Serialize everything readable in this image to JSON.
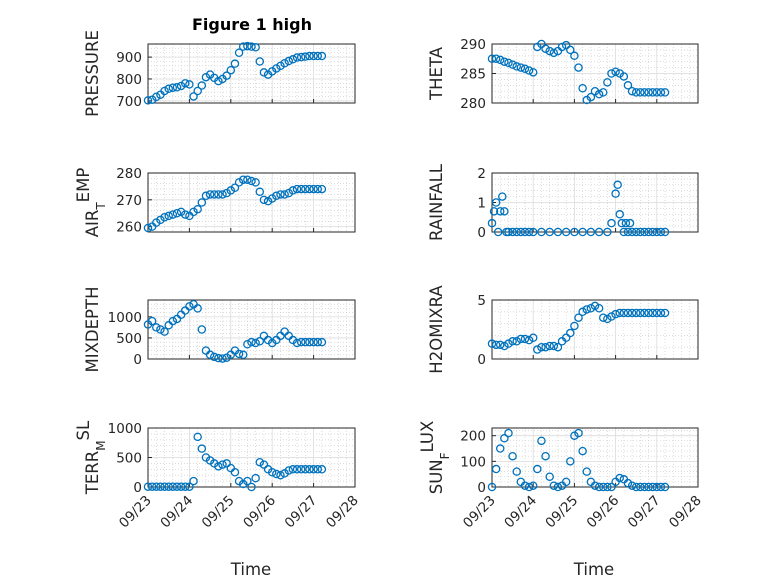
{
  "title": "Figure 1 high",
  "marker_color": "#0072BD",
  "x_tick_labels": [
    "09/23",
    "09/24",
    "09/25",
    "09/26",
    "09/27",
    "09/28"
  ],
  "xlabel": "Time",
  "chart_data": [
    {
      "type": "scatter",
      "ylabel": "PRESSURE",
      "ylim": [
        690,
        960
      ],
      "yticks": [
        700,
        800,
        900
      ],
      "grid": true,
      "x": [
        0.0,
        0.1,
        0.2,
        0.3,
        0.4,
        0.5,
        0.6,
        0.7,
        0.8,
        0.9,
        1.0,
        1.1,
        1.2,
        1.3,
        1.4,
        1.5,
        1.6,
        1.7,
        1.8,
        1.9,
        2.0,
        2.1,
        2.2,
        2.3,
        2.4,
        2.5,
        2.6,
        2.7,
        2.8,
        2.9,
        3.0,
        3.1,
        3.2,
        3.3,
        3.4,
        3.5,
        3.6,
        3.7,
        3.8,
        3.9,
        4.0,
        4.1,
        4.2
      ],
      "y": [
        702,
        705,
        718,
        728,
        745,
        755,
        760,
        762,
        768,
        780,
        775,
        720,
        745,
        770,
        808,
        820,
        805,
        790,
        800,
        815,
        840,
        870,
        920,
        948,
        950,
        948,
        945,
        880,
        830,
        820,
        835,
        848,
        860,
        872,
        882,
        890,
        898,
        900,
        902,
        905,
        905,
        905,
        905
      ]
    },
    {
      "type": "scatter",
      "ylabel": "THETA",
      "ylim": [
        280,
        290
      ],
      "yticks": [
        280,
        285,
        290
      ],
      "grid": true,
      "x": [
        0.0,
        0.1,
        0.2,
        0.3,
        0.4,
        0.5,
        0.6,
        0.7,
        0.8,
        0.9,
        1.0,
        1.1,
        1.2,
        1.3,
        1.4,
        1.5,
        1.6,
        1.7,
        1.8,
        1.9,
        2.0,
        2.1,
        2.2,
        2.3,
        2.4,
        2.5,
        2.6,
        2.7,
        2.8,
        2.9,
        3.0,
        3.1,
        3.2,
        3.3,
        3.4,
        3.5,
        3.6,
        3.7,
        3.8,
        3.9,
        4.0,
        4.1,
        4.2
      ],
      "y": [
        287.5,
        287.5,
        287.3,
        287.0,
        286.8,
        286.5,
        286.2,
        286.0,
        285.8,
        285.5,
        285.2,
        289.5,
        290.0,
        289.2,
        288.8,
        288.5,
        288.8,
        289.5,
        289.8,
        289.0,
        288.0,
        286.0,
        282.5,
        280.5,
        281.0,
        282.0,
        281.5,
        281.8,
        283.5,
        285.0,
        285.3,
        285.0,
        284.5,
        283.0,
        282.0,
        281.8,
        281.8,
        281.8,
        281.8,
        281.8,
        281.8,
        281.8,
        281.8
      ]
    },
    {
      "type": "scatter",
      "ylabel": "AIR_TEMP",
      "ylim": [
        258,
        280
      ],
      "yticks": [
        260,
        270,
        280
      ],
      "grid": true,
      "x": [
        0.0,
        0.1,
        0.2,
        0.3,
        0.4,
        0.5,
        0.6,
        0.7,
        0.8,
        0.9,
        1.0,
        1.1,
        1.2,
        1.3,
        1.4,
        1.5,
        1.6,
        1.7,
        1.8,
        1.9,
        2.0,
        2.1,
        2.2,
        2.3,
        2.4,
        2.5,
        2.6,
        2.7,
        2.8,
        2.9,
        3.0,
        3.1,
        3.2,
        3.3,
        3.4,
        3.5,
        3.6,
        3.7,
        3.8,
        3.9,
        4.0,
        4.1,
        4.2
      ],
      "y": [
        259.5,
        260.0,
        261.5,
        262.5,
        263.5,
        264.0,
        264.5,
        265.0,
        265.5,
        264.5,
        264.0,
        265.5,
        266.5,
        269.0,
        271.5,
        272.0,
        272.0,
        272.0,
        272.0,
        272.5,
        273.5,
        274.5,
        276.5,
        277.5,
        277.5,
        277.0,
        276.5,
        273.0,
        270.0,
        269.5,
        270.5,
        271.5,
        272.0,
        272.0,
        272.5,
        273.5,
        274.0,
        274.0,
        274.0,
        274.0,
        274.0,
        274.0,
        274.0
      ]
    },
    {
      "type": "scatter",
      "ylabel": "RAINFALL",
      "ylim": [
        0,
        2
      ],
      "yticks": [
        0,
        1,
        2
      ],
      "grid": true,
      "x": [
        0.0,
        0.05,
        0.1,
        0.15,
        0.2,
        0.25,
        0.3,
        0.35,
        0.4,
        0.5,
        0.6,
        0.7,
        0.8,
        0.9,
        1.0,
        1.2,
        1.4,
        1.6,
        1.8,
        2.0,
        2.2,
        2.4,
        2.6,
        2.8,
        2.9,
        3.0,
        3.05,
        3.1,
        3.15,
        3.2,
        3.25,
        3.3,
        3.35,
        3.4,
        3.5,
        3.6,
        3.7,
        3.8,
        3.9,
        4.0,
        4.1,
        4.2
      ],
      "y": [
        0.3,
        0.7,
        1.0,
        0.0,
        0.7,
        1.2,
        0.7,
        0.0,
        0.0,
        0.0,
        0.0,
        0.0,
        0.0,
        0.0,
        0.0,
        0.0,
        0.0,
        0.0,
        0.0,
        0.0,
        0.0,
        0.0,
        0.0,
        0.0,
        0.3,
        1.3,
        1.6,
        0.6,
        0.3,
        0.0,
        0.3,
        0.0,
        0.3,
        0.0,
        0.0,
        0.0,
        0.0,
        0.0,
        0.0,
        0.0,
        0.0,
        0.0
      ]
    },
    {
      "type": "scatter",
      "ylabel": "MIXDEPTH",
      "ylim": [
        0,
        1400
      ],
      "yticks": [
        0,
        500,
        1000
      ],
      "grid": true,
      "x": [
        0.0,
        0.1,
        0.2,
        0.3,
        0.4,
        0.5,
        0.6,
        0.7,
        0.8,
        0.9,
        1.0,
        1.1,
        1.2,
        1.3,
        1.4,
        1.5,
        1.6,
        1.7,
        1.8,
        1.9,
        2.0,
        2.1,
        2.2,
        2.3,
        2.4,
        2.5,
        2.6,
        2.7,
        2.8,
        2.9,
        3.0,
        3.1,
        3.2,
        3.3,
        3.4,
        3.5,
        3.6,
        3.7,
        3.8,
        3.9,
        4.0,
        4.1,
        4.2
      ],
      "y": [
        820,
        900,
        750,
        700,
        650,
        800,
        900,
        950,
        1050,
        1150,
        1250,
        1300,
        1200,
        700,
        200,
        100,
        50,
        20,
        10,
        30,
        100,
        200,
        120,
        100,
        350,
        400,
        380,
        420,
        550,
        450,
        380,
        450,
        550,
        650,
        550,
        450,
        380,
        400,
        400,
        400,
        400,
        400,
        400
      ]
    },
    {
      "type": "scatter",
      "ylabel": "H2OMIXRA",
      "ylim": [
        0,
        5
      ],
      "yticks": [
        0,
        5
      ],
      "grid": true,
      "x": [
        0.0,
        0.1,
        0.2,
        0.3,
        0.4,
        0.5,
        0.6,
        0.7,
        0.8,
        0.9,
        1.0,
        1.1,
        1.2,
        1.3,
        1.4,
        1.5,
        1.6,
        1.7,
        1.8,
        1.9,
        2.0,
        2.1,
        2.2,
        2.3,
        2.4,
        2.5,
        2.6,
        2.7,
        2.8,
        2.9,
        3.0,
        3.1,
        3.2,
        3.3,
        3.4,
        3.5,
        3.6,
        3.7,
        3.8,
        3.9,
        4.0,
        4.1,
        4.2
      ],
      "y": [
        1.3,
        1.2,
        1.2,
        1.1,
        1.3,
        1.5,
        1.5,
        1.7,
        1.7,
        1.6,
        1.8,
        0.8,
        1.0,
        1.0,
        1.1,
        1.1,
        1.0,
        1.5,
        1.8,
        2.2,
        2.8,
        3.5,
        4.0,
        4.2,
        4.3,
        4.5,
        4.3,
        3.5,
        3.4,
        3.6,
        3.8,
        3.9,
        3.9,
        3.9,
        3.9,
        3.9,
        3.9,
        3.9,
        3.9,
        3.9,
        3.9,
        3.9,
        3.9
      ]
    },
    {
      "type": "scatter",
      "ylabel": "TERR_MSL",
      "ylim": [
        0,
        1000
      ],
      "yticks": [
        0,
        500,
        1000
      ],
      "grid": true,
      "x": [
        0.0,
        0.1,
        0.2,
        0.3,
        0.4,
        0.5,
        0.6,
        0.7,
        0.8,
        0.9,
        1.0,
        1.1,
        1.2,
        1.3,
        1.4,
        1.5,
        1.6,
        1.7,
        1.8,
        1.9,
        2.0,
        2.1,
        2.2,
        2.3,
        2.4,
        2.5,
        2.6,
        2.7,
        2.8,
        2.9,
        3.0,
        3.1,
        3.2,
        3.3,
        3.4,
        3.5,
        3.6,
        3.7,
        3.8,
        3.9,
        4.0,
        4.1,
        4.2
      ],
      "y": [
        5,
        5,
        5,
        5,
        5,
        5,
        5,
        5,
        5,
        5,
        5,
        100,
        850,
        650,
        500,
        450,
        400,
        350,
        380,
        400,
        320,
        250,
        100,
        50,
        100,
        0,
        150,
        420,
        380,
        300,
        250,
        220,
        200,
        230,
        280,
        300,
        300,
        300,
        300,
        300,
        300,
        300,
        300
      ]
    },
    {
      "type": "scatter",
      "ylabel": "SUN_FLUX",
      "ylim": [
        0,
        230
      ],
      "yticks": [
        0,
        100,
        200
      ],
      "grid": true,
      "x": [
        0.0,
        0.1,
        0.2,
        0.3,
        0.4,
        0.5,
        0.6,
        0.7,
        0.8,
        0.9,
        1.0,
        1.1,
        1.2,
        1.3,
        1.4,
        1.5,
        1.6,
        1.7,
        1.8,
        1.9,
        2.0,
        2.1,
        2.2,
        2.3,
        2.4,
        2.5,
        2.6,
        2.7,
        2.8,
        2.9,
        3.0,
        3.1,
        3.2,
        3.3,
        3.4,
        3.5,
        3.6,
        3.7,
        3.8,
        3.9,
        4.0,
        4.1,
        4.2
      ],
      "y": [
        0,
        70,
        150,
        190,
        210,
        120,
        60,
        20,
        5,
        0,
        5,
        70,
        180,
        120,
        40,
        5,
        0,
        5,
        20,
        100,
        200,
        210,
        140,
        60,
        20,
        5,
        0,
        0,
        0,
        0,
        20,
        35,
        30,
        15,
        5,
        0,
        0,
        0,
        0,
        0,
        0,
        0,
        0
      ]
    }
  ]
}
